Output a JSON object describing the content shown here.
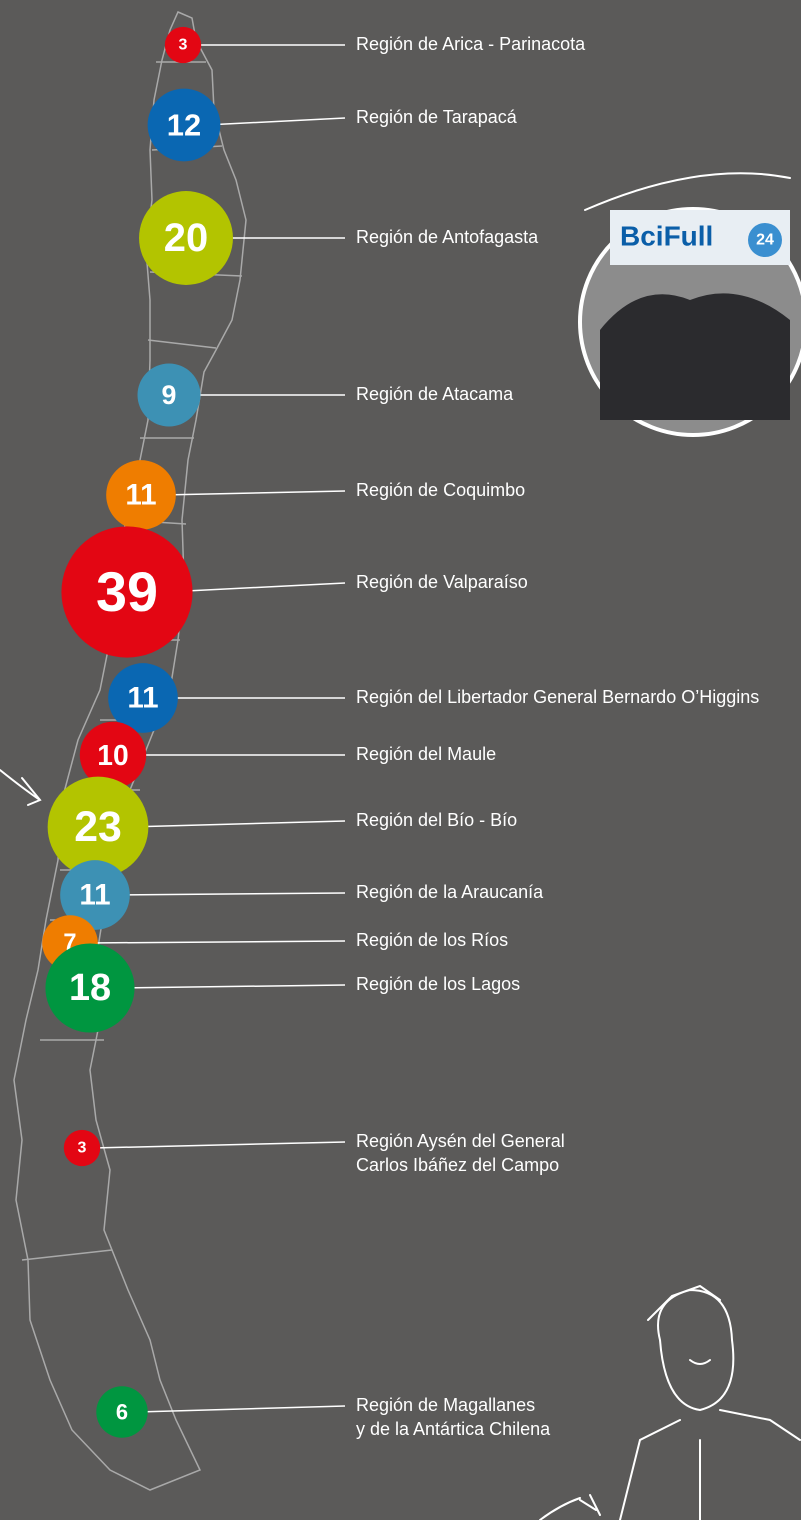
{
  "regions": [
    {
      "lines": [
        "Región de Arica - Parinacota"
      ],
      "count": 3
    },
    {
      "lines": [
        "Región de Tarapacá"
      ],
      "count": 12
    },
    {
      "lines": [
        "Región de Antofagasta"
      ],
      "count": 20
    },
    {
      "lines": [
        "Región de Atacama"
      ],
      "count": 9
    },
    {
      "lines": [
        "Región de Coquimbo"
      ],
      "count": 11
    },
    {
      "lines": [
        "Región de Valparaíso"
      ],
      "count": 39
    },
    {
      "lines": [
        "Región del Libertador General Bernardo O’Higgins"
      ],
      "count": 11
    },
    {
      "lines": [
        "Región del Maule"
      ],
      "count": 10
    },
    {
      "lines": [
        "Región del Bío - Bío"
      ],
      "count": 23
    },
    {
      "lines": [
        "Región de la Araucanía"
      ],
      "count": 11
    },
    {
      "lines": [
        "Región de los Ríos"
      ],
      "count": 7
    },
    {
      "lines": [
        "Región de los Lagos"
      ],
      "count": 18
    },
    {
      "lines": [
        "Región Aysén del General",
        "Carlos Ibáñez del Campo"
      ],
      "count": 3
    },
    {
      "lines": [
        "Región de Magallanes",
        "y de la Antártica Chilena"
      ],
      "count": 6
    }
  ],
  "photo": {
    "sign": "BciFull",
    "badge": "24"
  }
}
